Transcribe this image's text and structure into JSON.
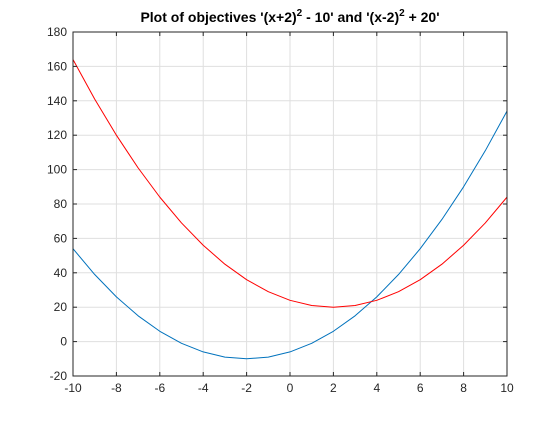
{
  "chart_data": {
    "type": "line",
    "title": {
      "part1": "Plot of objectives '(x+2)",
      "sup1": "2",
      "part2": " - 10' and '(x-2)",
      "sup2": "2",
      "part3": " + 20'"
    },
    "xlabel": "",
    "ylabel": "",
    "xlim": [
      -10,
      10
    ],
    "ylim": [
      -20,
      180
    ],
    "xticks": [
      -10,
      -8,
      -6,
      -4,
      -2,
      0,
      2,
      4,
      6,
      8,
      10
    ],
    "yticks": [
      -20,
      0,
      20,
      40,
      60,
      80,
      100,
      120,
      140,
      160,
      180
    ],
    "grid": true,
    "legend": "none",
    "x": [
      -10,
      -9,
      -8,
      -7,
      -6,
      -5,
      -4,
      -3,
      -2,
      -1,
      0,
      1,
      2,
      3,
      4,
      5,
      6,
      7,
      8,
      9,
      10
    ],
    "series": [
      {
        "color": "#0072BD",
        "values": [
          54,
          39,
          26,
          15,
          6,
          -1,
          -6,
          -9,
          -10,
          -9,
          -6,
          -1,
          6,
          15,
          26,
          39,
          54,
          71,
          90,
          111,
          134
        ]
      },
      {
        "color": "#FF0000",
        "values": [
          164,
          141,
          120,
          101,
          84,
          69,
          56,
          45,
          36,
          29,
          24,
          21,
          20,
          21,
          24,
          29,
          36,
          45,
          56,
          69,
          84
        ]
      }
    ]
  }
}
